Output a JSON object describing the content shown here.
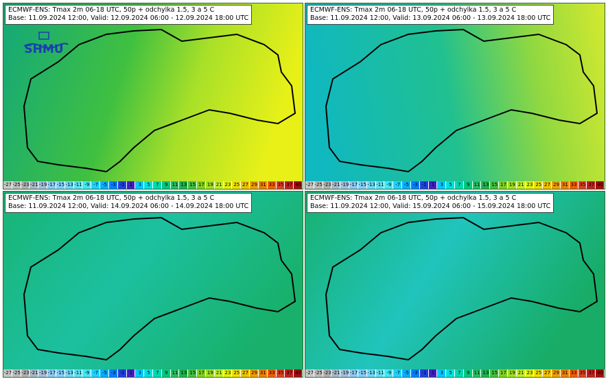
{
  "panels": [
    {
      "line1": "ECMWF-ENS: Tmax 2m 06-18 UTC, 50p + odchylka 1.5, 3 a 5 C",
      "line2": "Base: 11.09.2024 12:00, Valid: 12.09.2024 06:00 - 12.09.2024 18:00 UTC",
      "base_color": "#1db86a",
      "accent_color": "#d8f01a"
    },
    {
      "line1": "ECMWF-ENS: Tmax 2m 06-18 UTC, 50p + odchylka 1.5, 3 a 5 C",
      "line2": "Base: 11.09.2024 12:00, Valid: 13.09.2024 06:00 - 13.09.2024 18:00 UTC",
      "base_color": "#12c08e",
      "accent_color": "#b8e03a"
    },
    {
      "line1": "ECMWF-ENS: Tmax 2m 06-18 UTC, 50p + odchylka 1.5, 3 a 5 C",
      "line2": "Base: 11.09.2024 12:00, Valid: 14.09.2024 06:00 - 14.09.2024 18:00 UTC",
      "base_color": "#17b872",
      "accent_color": "#22c7a8"
    },
    {
      "line1": "ECMWF-ENS: Tmax 2m 06-18 UTC, 50p + odchylka 1.5, 3 a 5 C",
      "line2": "Base: 11.09.2024 12:00, Valid: 15.09.2024 06:00 - 15.09.2024 18:00 UTC",
      "base_color": "#17b46e",
      "accent_color": "#22c4b4"
    }
  ],
  "colorbar_labels": [
    "-27",
    "-25",
    "-23",
    "-21",
    "-19",
    "-17",
    "-15",
    "-13",
    "-11",
    "-9",
    "-7",
    "-5",
    "-3",
    "-1",
    "1",
    "3",
    "5",
    "7",
    "9",
    "11",
    "13",
    "15",
    "17",
    "19",
    "21",
    "23",
    "25",
    "27",
    "29",
    "31",
    "33",
    "35",
    "37",
    "40"
  ],
  "colorbar_colors": [
    "#c8c8c8",
    "#bcbcbc",
    "#b0b0b0",
    "#a8b8c8",
    "#a0c0e0",
    "#90c8f0",
    "#80d0ff",
    "#70d8f8",
    "#60e0f0",
    "#40e8f8",
    "#20d0ff",
    "#00b0ff",
    "#0080ff",
    "#2040e0",
    "#4020c0",
    "#00c8ff",
    "#00e0e0",
    "#00d8b0",
    "#00c880",
    "#20c060",
    "#20b050",
    "#40c040",
    "#80d020",
    "#a0e020",
    "#c0f020",
    "#e0f010",
    "#f0e000",
    "#f0c000",
    "#f0a000",
    "#f08000",
    "#f06000",
    "#e04020",
    "#c02020",
    "#a01010"
  ],
  "logo_text": "SHMU"
}
